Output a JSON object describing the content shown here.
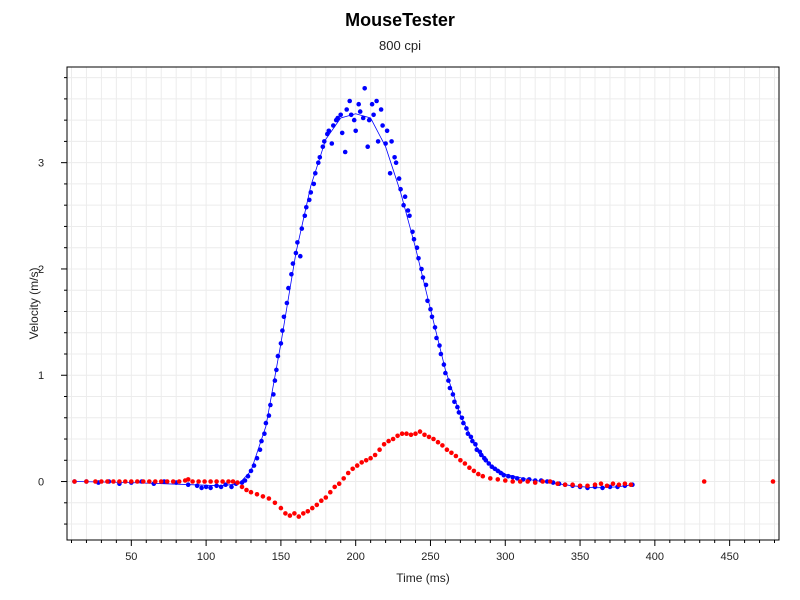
{
  "chart_data": {
    "type": "scatter",
    "title": "MouseTester",
    "subtitle": "800 cpi",
    "xlabel": "Time (ms)",
    "ylabel": "Velocity (m/s)",
    "xlim": [
      7,
      483
    ],
    "ylim": [
      -0.55,
      3.9
    ],
    "x_ticks": [
      50,
      100,
      150,
      200,
      250,
      300,
      350,
      400,
      450
    ],
    "y_ticks": [
      0,
      1,
      2,
      3
    ],
    "grid": true,
    "colors": {
      "x_series": "#0000ff",
      "y_series": "#ff0000",
      "grid": "#ececec",
      "axis": "#000000"
    },
    "series": [
      {
        "color": "#0000ff",
        "points": [
          [
            12,
            0
          ],
          [
            20,
            0
          ],
          [
            28,
            -0.01
          ],
          [
            35,
            0
          ],
          [
            42,
            -0.02
          ],
          [
            50,
            -0.01
          ],
          [
            57,
            0
          ],
          [
            65,
            -0.02
          ],
          [
            72,
            0
          ],
          [
            80,
            -0.01
          ],
          [
            88,
            -0.03
          ],
          [
            94,
            -0.04
          ],
          [
            97,
            -0.06
          ],
          [
            100,
            -0.05
          ],
          [
            103,
            -0.06
          ],
          [
            107,
            -0.04
          ],
          [
            110,
            -0.05
          ],
          [
            113,
            -0.03
          ],
          [
            117,
            -0.05
          ],
          [
            120,
            -0.02
          ],
          [
            124,
            -0.01
          ],
          [
            126,
            0.01
          ],
          [
            128,
            0.05
          ],
          [
            130,
            0.1
          ],
          [
            132,
            0.15
          ],
          [
            134,
            0.22
          ],
          [
            136,
            0.3
          ],
          [
            137,
            0.38
          ],
          [
            139,
            0.45
          ],
          [
            140,
            0.55
          ],
          [
            142,
            0.62
          ],
          [
            143,
            0.72
          ],
          [
            145,
            0.82
          ],
          [
            146,
            0.95
          ],
          [
            147,
            1.05
          ],
          [
            148,
            1.18
          ],
          [
            150,
            1.3
          ],
          [
            151,
            1.42
          ],
          [
            152,
            1.55
          ],
          [
            154,
            1.68
          ],
          [
            155,
            1.82
          ],
          [
            157,
            1.95
          ],
          [
            158,
            2.05
          ],
          [
            160,
            2.15
          ],
          [
            161,
            2.25
          ],
          [
            163,
            2.12
          ],
          [
            164,
            2.38
          ],
          [
            166,
            2.5
          ],
          [
            167,
            2.58
          ],
          [
            169,
            2.65
          ],
          [
            170,
            2.72
          ],
          [
            172,
            2.8
          ],
          [
            173,
            2.9
          ],
          [
            175,
            3.0
          ],
          [
            176,
            3.05
          ],
          [
            178,
            3.15
          ],
          [
            179,
            3.2
          ],
          [
            181,
            3.27
          ],
          [
            182,
            3.3
          ],
          [
            184,
            3.18
          ],
          [
            185,
            3.35
          ],
          [
            187,
            3.4
          ],
          [
            188,
            3.42
          ],
          [
            190,
            3.45
          ],
          [
            191,
            3.28
          ],
          [
            193,
            3.1
          ],
          [
            194,
            3.5
          ],
          [
            196,
            3.58
          ],
          [
            197,
            3.45
          ],
          [
            199,
            3.4
          ],
          [
            200,
            3.3
          ],
          [
            202,
            3.55
          ],
          [
            203,
            3.48
          ],
          [
            205,
            3.42
          ],
          [
            206,
            3.7
          ],
          [
            208,
            3.15
          ],
          [
            209,
            3.4
          ],
          [
            211,
            3.55
          ],
          [
            212,
            3.45
          ],
          [
            214,
            3.58
          ],
          [
            215,
            3.2
          ],
          [
            217,
            3.5
          ],
          [
            218,
            3.35
          ],
          [
            220,
            3.18
          ],
          [
            221,
            3.3
          ],
          [
            223,
            2.9
          ],
          [
            224,
            3.2
          ],
          [
            226,
            3.05
          ],
          [
            227,
            3.0
          ],
          [
            229,
            2.85
          ],
          [
            230,
            2.75
          ],
          [
            232,
            2.6
          ],
          [
            233,
            2.68
          ],
          [
            235,
            2.55
          ],
          [
            236,
            2.5
          ],
          [
            238,
            2.35
          ],
          [
            239,
            2.28
          ],
          [
            241,
            2.2
          ],
          [
            242,
            2.1
          ],
          [
            244,
            2.0
          ],
          [
            245,
            1.92
          ],
          [
            247,
            1.85
          ],
          [
            248,
            1.7
          ],
          [
            250,
            1.62
          ],
          [
            251,
            1.55
          ],
          [
            253,
            1.45
          ],
          [
            254,
            1.35
          ],
          [
            256,
            1.28
          ],
          [
            257,
            1.2
          ],
          [
            259,
            1.1
          ],
          [
            260,
            1.02
          ],
          [
            262,
            0.95
          ],
          [
            263,
            0.88
          ],
          [
            265,
            0.82
          ],
          [
            266,
            0.75
          ],
          [
            268,
            0.7
          ],
          [
            269,
            0.65
          ],
          [
            271,
            0.6
          ],
          [
            272,
            0.55
          ],
          [
            274,
            0.5
          ],
          [
            275,
            0.45
          ],
          [
            277,
            0.42
          ],
          [
            278,
            0.38
          ],
          [
            280,
            0.35
          ],
          [
            281,
            0.3
          ],
          [
            283,
            0.28
          ],
          [
            284,
            0.25
          ],
          [
            286,
            0.22
          ],
          [
            287,
            0.2
          ],
          [
            289,
            0.17
          ],
          [
            291,
            0.14
          ],
          [
            293,
            0.12
          ],
          [
            295,
            0.1
          ],
          [
            297,
            0.08
          ],
          [
            299,
            0.06
          ],
          [
            302,
            0.05
          ],
          [
            305,
            0.04
          ],
          [
            308,
            0.03
          ],
          [
            312,
            0.02
          ],
          [
            316,
            0.02
          ],
          [
            320,
            0.01
          ],
          [
            324,
            0.01
          ],
          [
            328,
            0
          ],
          [
            332,
            -0.01
          ],
          [
            336,
            -0.02
          ],
          [
            340,
            -0.03
          ],
          [
            345,
            -0.04
          ],
          [
            350,
            -0.05
          ],
          [
            355,
            -0.06
          ],
          [
            360,
            -0.05
          ],
          [
            365,
            -0.06
          ],
          [
            370,
            -0.05
          ],
          [
            375,
            -0.05
          ],
          [
            380,
            -0.04
          ],
          [
            385,
            -0.03
          ]
        ],
        "fit": [
          [
            12,
            0
          ],
          [
            50,
            -0.01
          ],
          [
            90,
            -0.03
          ],
          [
            110,
            -0.04
          ],
          [
            122,
            -0.02
          ],
          [
            130,
            0.1
          ],
          [
            140,
            0.52
          ],
          [
            150,
            1.3
          ],
          [
            160,
            2.15
          ],
          [
            170,
            2.78
          ],
          [
            180,
            3.22
          ],
          [
            190,
            3.42
          ],
          [
            200,
            3.46
          ],
          [
            210,
            3.42
          ],
          [
            220,
            3.15
          ],
          [
            230,
            2.72
          ],
          [
            240,
            2.2
          ],
          [
            250,
            1.62
          ],
          [
            260,
            1.05
          ],
          [
            270,
            0.62
          ],
          [
            280,
            0.34
          ],
          [
            290,
            0.16
          ],
          [
            300,
            0.07
          ],
          [
            315,
            0.02
          ],
          [
            330,
            -0.01
          ],
          [
            345,
            -0.04
          ],
          [
            360,
            -0.06
          ],
          [
            375,
            -0.05
          ],
          [
            385,
            -0.03
          ]
        ]
      },
      {
        "color": "#ff0000",
        "points": [
          [
            12,
            0
          ],
          [
            20,
            0
          ],
          [
            26,
            0
          ],
          [
            30,
            0
          ],
          [
            34,
            0
          ],
          [
            38,
            0
          ],
          [
            42,
            0
          ],
          [
            46,
            0
          ],
          [
            50,
            0
          ],
          [
            54,
            0
          ],
          [
            58,
            0
          ],
          [
            62,
            0
          ],
          [
            66,
            0
          ],
          [
            70,
            0
          ],
          [
            74,
            0
          ],
          [
            78,
            0
          ],
          [
            82,
            0
          ],
          [
            86,
            0.01
          ],
          [
            88,
            0.02
          ],
          [
            91,
            0
          ],
          [
            95,
            0
          ],
          [
            99,
            0
          ],
          [
            103,
            0
          ],
          [
            107,
            0
          ],
          [
            111,
            0
          ],
          [
            115,
            0
          ],
          [
            118,
            0
          ],
          [
            121,
            -0.01
          ],
          [
            124,
            -0.05
          ],
          [
            127,
            -0.08
          ],
          [
            130,
            -0.1
          ],
          [
            134,
            -0.12
          ],
          [
            138,
            -0.14
          ],
          [
            142,
            -0.16
          ],
          [
            146,
            -0.2
          ],
          [
            150,
            -0.25
          ],
          [
            153,
            -0.3
          ],
          [
            156,
            -0.32
          ],
          [
            159,
            -0.3
          ],
          [
            162,
            -0.33
          ],
          [
            165,
            -0.3
          ],
          [
            168,
            -0.28
          ],
          [
            171,
            -0.25
          ],
          [
            174,
            -0.22
          ],
          [
            177,
            -0.18
          ],
          [
            180,
            -0.15
          ],
          [
            183,
            -0.1
          ],
          [
            186,
            -0.05
          ],
          [
            189,
            -0.02
          ],
          [
            192,
            0.03
          ],
          [
            195,
            0.08
          ],
          [
            198,
            0.12
          ],
          [
            201,
            0.15
          ],
          [
            204,
            0.18
          ],
          [
            207,
            0.2
          ],
          [
            210,
            0.22
          ],
          [
            213,
            0.25
          ],
          [
            216,
            0.3
          ],
          [
            219,
            0.35
          ],
          [
            222,
            0.38
          ],
          [
            225,
            0.4
          ],
          [
            228,
            0.43
          ],
          [
            231,
            0.45
          ],
          [
            234,
            0.45
          ],
          [
            237,
            0.44
          ],
          [
            240,
            0.45
          ],
          [
            243,
            0.47
          ],
          [
            246,
            0.44
          ],
          [
            249,
            0.42
          ],
          [
            252,
            0.4
          ],
          [
            255,
            0.37
          ],
          [
            258,
            0.34
          ],
          [
            261,
            0.3
          ],
          [
            264,
            0.27
          ],
          [
            267,
            0.24
          ],
          [
            270,
            0.2
          ],
          [
            273,
            0.17
          ],
          [
            276,
            0.13
          ],
          [
            279,
            0.1
          ],
          [
            282,
            0.07
          ],
          [
            285,
            0.05
          ],
          [
            290,
            0.03
          ],
          [
            295,
            0.02
          ],
          [
            300,
            0.01
          ],
          [
            305,
            0
          ],
          [
            310,
            0
          ],
          [
            315,
            0
          ],
          [
            320,
            -0.01
          ],
          [
            325,
            0
          ],
          [
            330,
            0
          ],
          [
            335,
            -0.02
          ],
          [
            340,
            -0.03
          ],
          [
            345,
            -0.03
          ],
          [
            350,
            -0.04
          ],
          [
            355,
            -0.04
          ],
          [
            360,
            -0.03
          ],
          [
            364,
            -0.02
          ],
          [
            368,
            -0.04
          ],
          [
            372,
            -0.02
          ],
          [
            376,
            -0.03
          ],
          [
            380,
            -0.02
          ],
          [
            384,
            -0.03
          ],
          [
            433,
            0
          ],
          [
            479,
            0
          ]
        ]
      }
    ]
  }
}
